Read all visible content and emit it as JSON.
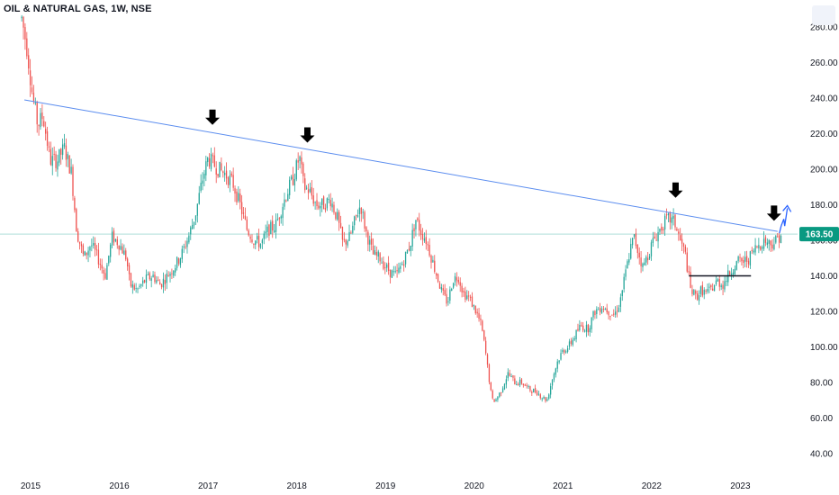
{
  "header": {
    "symbol_title": "OIL & NATURAL GAS, 1W, NSE"
  },
  "colors": {
    "up": "#26a69a",
    "down": "#ef5350",
    "trendline": "#5b8def",
    "price_line": "#26a69a",
    "price_box": "#089981",
    "support_line": "#131722",
    "arrow": "#000000",
    "projection": "#2962ff"
  },
  "chart_data": {
    "type": "candlestick",
    "title": "OIL & NATURAL GAS, 1W, NSE",
    "xlabel": "",
    "ylabel": "",
    "x_range": [
      2014.9,
      2023.55
    ],
    "ylim": [
      32,
      290
    ],
    "x_ticks": [
      {
        "x": 2015,
        "label": "2015"
      },
      {
        "x": 2016,
        "label": "2016"
      },
      {
        "x": 2017,
        "label": "2017"
      },
      {
        "x": 2018,
        "label": "2018"
      },
      {
        "x": 2019,
        "label": "2019"
      },
      {
        "x": 2020,
        "label": "2020"
      },
      {
        "x": 2021,
        "label": "2021"
      },
      {
        "x": 2022,
        "label": "2022"
      },
      {
        "x": 2023,
        "label": "2023"
      }
    ],
    "y_ticks": [
      {
        "y": 280,
        "label": "280.00"
      },
      {
        "y": 260,
        "label": "260.00"
      },
      {
        "y": 240,
        "label": "240.00"
      },
      {
        "y": 220,
        "label": "220.00"
      },
      {
        "y": 200,
        "label": "200.00"
      },
      {
        "y": 180,
        "label": "180.00"
      },
      {
        "y": 160,
        "label": "160.00"
      },
      {
        "y": 140,
        "label": "140.00"
      },
      {
        "y": 120,
        "label": "120.00"
      },
      {
        "y": 100,
        "label": "100.00"
      },
      {
        "y": 80,
        "label": "80.00"
      },
      {
        "y": 60,
        "label": "60.00"
      },
      {
        "y": 40,
        "label": "40.00"
      }
    ],
    "grid": false,
    "price_series": [
      [
        2014.9,
        285
      ],
      [
        2014.96,
        268
      ],
      [
        2015.02,
        242
      ],
      [
        2015.08,
        225
      ],
      [
        2015.14,
        230
      ],
      [
        2015.22,
        205
      ],
      [
        2015.3,
        205
      ],
      [
        2015.38,
        212
      ],
      [
        2015.46,
        198
      ],
      [
        2015.52,
        165
      ],
      [
        2015.6,
        150
      ],
      [
        2015.68,
        158
      ],
      [
        2015.76,
        150
      ],
      [
        2015.84,
        140
      ],
      [
        2015.92,
        162
      ],
      [
        2016.0,
        158
      ],
      [
        2016.08,
        150
      ],
      [
        2016.12,
        135
      ],
      [
        2016.2,
        132
      ],
      [
        2016.3,
        138
      ],
      [
        2016.38,
        140
      ],
      [
        2016.46,
        135
      ],
      [
        2016.54,
        140
      ],
      [
        2016.62,
        145
      ],
      [
        2016.7,
        152
      ],
      [
        2016.78,
        162
      ],
      [
        2016.86,
        175
      ],
      [
        2016.94,
        195
      ],
      [
        2017.0,
        206
      ],
      [
        2017.06,
        203
      ],
      [
        2017.12,
        200
      ],
      [
        2017.2,
        197
      ],
      [
        2017.28,
        192
      ],
      [
        2017.36,
        180
      ],
      [
        2017.44,
        166
      ],
      [
        2017.52,
        160
      ],
      [
        2017.6,
        158
      ],
      [
        2017.68,
        166
      ],
      [
        2017.76,
        168
      ],
      [
        2017.84,
        180
      ],
      [
        2017.9,
        188
      ],
      [
        2017.96,
        195
      ],
      [
        2018.03,
        207
      ],
      [
        2018.08,
        190
      ],
      [
        2018.14,
        188
      ],
      [
        2018.22,
        180
      ],
      [
        2018.3,
        180
      ],
      [
        2018.38,
        183
      ],
      [
        2018.46,
        172
      ],
      [
        2018.52,
        158
      ],
      [
        2018.6,
        162
      ],
      [
        2018.68,
        175
      ],
      [
        2018.72,
        180
      ],
      [
        2018.78,
        165
      ],
      [
        2018.86,
        152
      ],
      [
        2018.94,
        150
      ],
      [
        2019.0,
        145
      ],
      [
        2019.06,
        142
      ],
      [
        2019.12,
        140
      ],
      [
        2019.2,
        148
      ],
      [
        2019.28,
        158
      ],
      [
        2019.34,
        172
      ],
      [
        2019.4,
        165
      ],
      [
        2019.46,
        160
      ],
      [
        2019.52,
        150
      ],
      [
        2019.58,
        140
      ],
      [
        2019.64,
        130
      ],
      [
        2019.7,
        125
      ],
      [
        2019.76,
        138
      ],
      [
        2019.82,
        140
      ],
      [
        2019.88,
        130
      ],
      [
        2019.94,
        128
      ],
      [
        2020.02,
        120
      ],
      [
        2020.08,
        112
      ],
      [
        2020.12,
        100
      ],
      [
        2020.16,
        85
      ],
      [
        2020.2,
        70
      ],
      [
        2020.24,
        70
      ],
      [
        2020.3,
        75
      ],
      [
        2020.38,
        85
      ],
      [
        2020.46,
        80
      ],
      [
        2020.54,
        80
      ],
      [
        2020.62,
        76
      ],
      [
        2020.7,
        75
      ],
      [
        2020.76,
        72
      ],
      [
        2020.82,
        70
      ],
      [
        2020.88,
        82
      ],
      [
        2020.94,
        92
      ],
      [
        2021.0,
        98
      ],
      [
        2021.06,
        100
      ],
      [
        2021.12,
        105
      ],
      [
        2021.2,
        112
      ],
      [
        2021.28,
        110
      ],
      [
        2021.36,
        120
      ],
      [
        2021.44,
        123
      ],
      [
        2021.52,
        120
      ],
      [
        2021.58,
        118
      ],
      [
        2021.64,
        125
      ],
      [
        2021.7,
        140
      ],
      [
        2021.76,
        155
      ],
      [
        2021.8,
        162
      ],
      [
        2021.84,
        155
      ],
      [
        2021.9,
        145
      ],
      [
        2021.96,
        152
      ],
      [
        2022.02,
        160
      ],
      [
        2022.08,
        165
      ],
      [
        2022.14,
        170
      ],
      [
        2022.2,
        172
      ],
      [
        2022.26,
        170
      ],
      [
        2022.32,
        160
      ],
      [
        2022.38,
        152
      ],
      [
        2022.44,
        132
      ],
      [
        2022.5,
        128
      ],
      [
        2022.56,
        132
      ],
      [
        2022.62,
        130
      ],
      [
        2022.68,
        133
      ],
      [
        2022.74,
        137
      ],
      [
        2022.8,
        135
      ],
      [
        2022.86,
        140
      ],
      [
        2022.92,
        145
      ],
      [
        2022.98,
        148
      ],
      [
        2023.04,
        148
      ],
      [
        2023.1,
        150
      ],
      [
        2023.16,
        155
      ],
      [
        2023.22,
        158
      ],
      [
        2023.28,
        160
      ],
      [
        2023.34,
        158
      ],
      [
        2023.4,
        160
      ],
      [
        2023.46,
        163.5
      ]
    ],
    "last_price": {
      "value": 163.5,
      "label": "163.50"
    },
    "annotations": {
      "trendline": {
        "start": [
          2014.93,
          239
        ],
        "end": [
          2023.42,
          165
        ]
      },
      "support_line": {
        "start": [
          2022.42,
          140
        ],
        "end": [
          2023.12,
          140
        ]
      },
      "down_arrows": [
        {
          "x": 2017.05,
          "y": 229
        },
        {
          "x": 2018.12,
          "y": 219
        },
        {
          "x": 2022.27,
          "y": 188
        },
        {
          "x": 2023.38,
          "y": 175
        }
      ],
      "projection_path": [
        [
          2023.44,
          164
        ],
        [
          2023.46,
          168
        ],
        [
          2023.49,
          172
        ],
        [
          2023.5,
          168
        ],
        [
          2023.53,
          178
        ]
      ]
    }
  }
}
